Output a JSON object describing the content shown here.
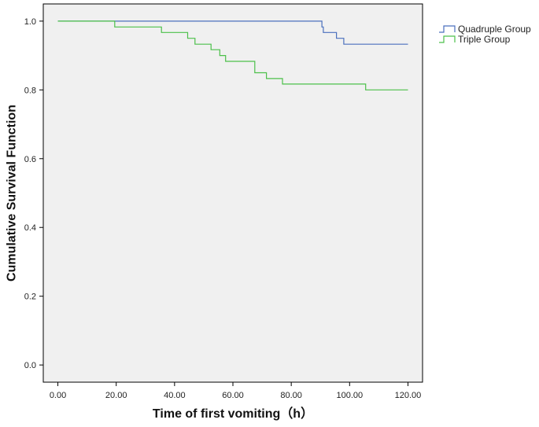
{
  "chart_data": {
    "type": "line",
    "subtype": "kaplan-meier step",
    "title": "",
    "xlabel": "Time of first vomiting（h）",
    "ylabel": "Cumulative Survival Function",
    "xlim": [
      -5,
      125
    ],
    "ylim": [
      -0.05,
      1.05
    ],
    "x_ticks": [
      0,
      20,
      40,
      60,
      80,
      100,
      120
    ],
    "x_tick_labels": [
      "0.00",
      "20.00",
      "40.00",
      "60.00",
      "80.00",
      "100.00",
      "120.00"
    ],
    "y_ticks": [
      0.0,
      0.2,
      0.4,
      0.6,
      0.8,
      1.0
    ],
    "y_tick_labels": [
      "0.0",
      "0.2",
      "0.4",
      "0.6",
      "0.8",
      "1.0"
    ],
    "grid": false,
    "plot_background": "#f0f0f0",
    "legend_position": "outside-right-top",
    "series": [
      {
        "name": "Quadruple Group",
        "color": "#4a6fbd",
        "x": [
          0,
          90.5,
          91,
          95.5,
          98,
          120
        ],
        "y": [
          1.0,
          0.983,
          0.967,
          0.95,
          0.933,
          0.933
        ]
      },
      {
        "name": "Triple Group",
        "color": "#4cc04a",
        "x": [
          0,
          19.5,
          35.5,
          44.5,
          47,
          52.5,
          55.5,
          57.5,
          67.5,
          71.5,
          77,
          105.5,
          120
        ],
        "y": [
          1.0,
          0.983,
          0.967,
          0.95,
          0.933,
          0.917,
          0.9,
          0.883,
          0.85,
          0.833,
          0.817,
          0.8,
          0.8
        ]
      }
    ]
  }
}
